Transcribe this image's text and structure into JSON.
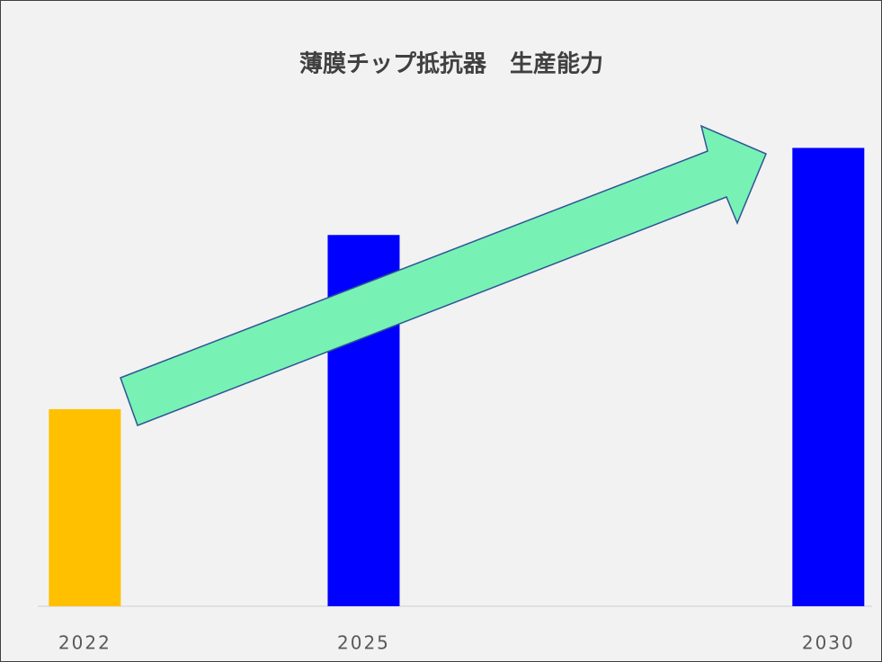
{
  "chart_data": {
    "type": "bar",
    "title": "薄膜チップ抵抗器　生産能力",
    "x": [
      2022,
      2025,
      2030
    ],
    "values": [
      43,
      81,
      100
    ],
    "colors": [
      "#ffc000",
      "#0000ff",
      "#0000ff"
    ],
    "xlim": [
      2021.3,
      2030.5
    ],
    "xticks": [
      2022,
      2025,
      2030
    ],
    "ylim": [
      0,
      115
    ]
  }
}
